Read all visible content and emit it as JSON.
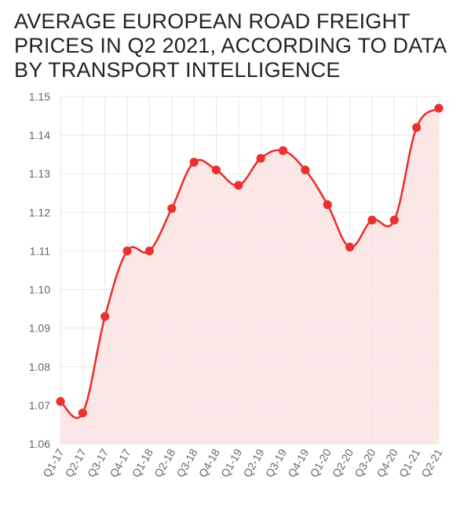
{
  "chart_data": {
    "type": "line",
    "title": "AVERAGE EUROPEAN ROAD FREIGHT PRICES IN Q2 2021, ACCORDING TO DATA BY TRANSPORT INTELLIGENCE",
    "xlabel": "",
    "ylabel": "",
    "categories": [
      "Q1-17",
      "Q2-17",
      "Q3-17",
      "Q4-17",
      "Q1-18",
      "Q2-18",
      "Q3-18",
      "Q4-18",
      "Q1-19",
      "Q2-19",
      "Q3-19",
      "Q4-19",
      "Q1-20",
      "Q2-20",
      "Q3-20",
      "Q4-20",
      "Q1-21",
      "Q2-21"
    ],
    "series": [
      {
        "name": "Average European road freight price",
        "values": [
          1.071,
          1.068,
          1.093,
          1.11,
          1.11,
          1.121,
          1.133,
          1.131,
          1.127,
          1.134,
          1.136,
          1.131,
          1.122,
          1.111,
          1.118,
          1.118,
          1.142,
          1.147
        ]
      }
    ],
    "ylim": [
      1.06,
      1.15
    ],
    "yticks": [
      "1.06",
      "1.07",
      "1.08",
      "1.09",
      "1.10",
      "1.11",
      "1.12",
      "1.13",
      "1.14",
      "1.15"
    ],
    "grid": true,
    "legend": "none",
    "colors": {
      "line": "#e8322f",
      "fill": "#fde6e6",
      "grid": "#e8e8e8",
      "text": "#666666"
    }
  }
}
